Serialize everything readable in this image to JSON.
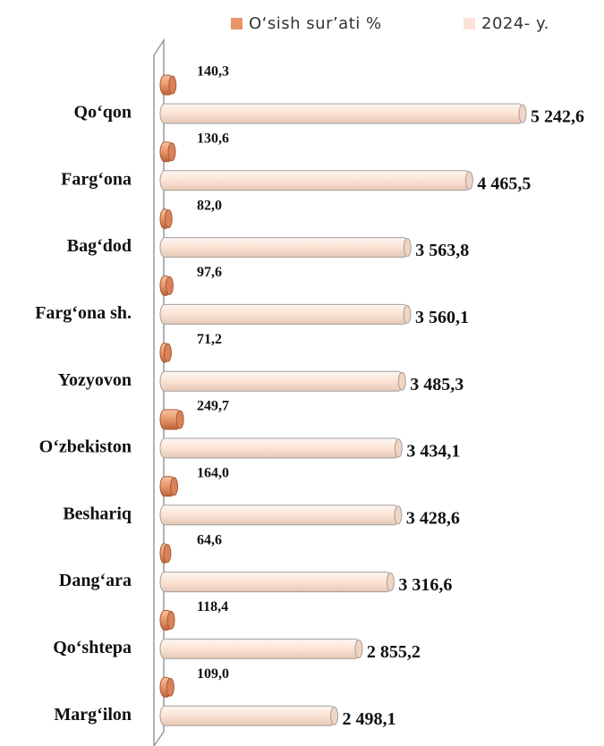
{
  "chart_data": {
    "type": "bar",
    "orientation": "horizontal",
    "categories": [
      "Qo‘qon",
      "Farg‘ona",
      "Bag‘dod",
      "Farg‘ona sh.",
      "Yozyovon",
      "O‘zbekiston",
      "Beshariq",
      "Dang‘ara",
      "Qo‘shtepa",
      "Marg‘ilon"
    ],
    "series": [
      {
        "name": "O‘sish sur’ati %",
        "color": "#e8956a",
        "values": [
          140.3,
          130.6,
          82.0,
          97.6,
          71.2,
          249.7,
          164.0,
          64.6,
          118.4,
          109.0
        ],
        "value_labels": [
          "140,3",
          "130,6",
          "82,0",
          "97,6",
          "71,2",
          "249,7",
          "164,0",
          "64,6",
          "118,4",
          "109,0"
        ]
      },
      {
        "name": "2024- y.",
        "color": "#fbe3d5",
        "values": [
          5242.6,
          4465.5,
          3563.8,
          3560.1,
          3485.3,
          3434.1,
          3428.6,
          3316.6,
          2855.2,
          2498.1
        ],
        "value_labels": [
          "5 242,6",
          "4 465,5",
          "3 563,8",
          "3 560,1",
          "3 485,3",
          "3 434,1",
          "3 428,6",
          "3 316,6",
          "2 855,2",
          "2 498,1"
        ]
      }
    ],
    "legend": "top"
  }
}
